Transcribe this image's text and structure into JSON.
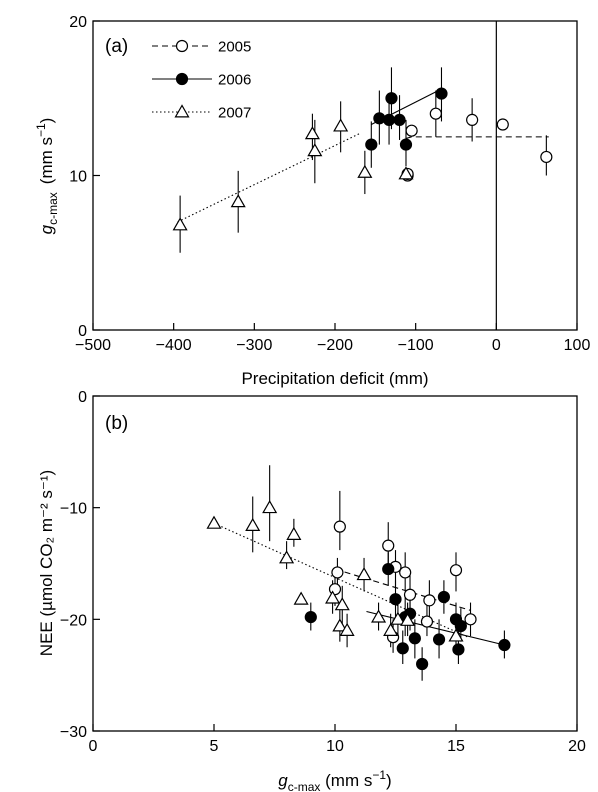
{
  "chart_data": [
    {
      "panel": "(a)",
      "type": "scatter",
      "xlabel": "Precipitation deficit (mm)",
      "ylabel_main": "g",
      "ylabel_sub": "c-max",
      "ylabel_unit": "(mm s",
      "ylabel_unit_sup": "−1",
      "ylabel_unit_close": ")",
      "xlim": [
        -500,
        100
      ],
      "ylim": [
        0,
        20
      ],
      "xticks": [
        -500,
        -400,
        -300,
        -200,
        -100,
        0,
        100
      ],
      "xtick_labels": [
        "−500",
        "−400",
        "−300",
        "−200",
        "−100",
        "0",
        "100"
      ],
      "yticks": [
        0,
        10,
        20
      ],
      "ytick_labels": [
        "0",
        "10",
        "20"
      ],
      "vline_x": 0,
      "legend_position": "top-left",
      "series": [
        {
          "name": "2005",
          "marker": "open-circle",
          "line": "dashed",
          "points": [
            [
              -110,
              10.0,
              10.0,
              10.0
            ],
            [
              -105,
              12.9,
              12.9,
              12.9
            ],
            [
              -75,
              14.0,
              12.5,
              15.5
            ],
            [
              -30,
              13.6,
              12.2,
              15.0
            ],
            [
              8,
              13.3,
              13.3,
              13.3
            ],
            [
              62,
              11.2,
              10.0,
              12.6
            ],
            [
              -110,
              10.1,
              10.1,
              10.1
            ]
          ],
          "fit": [
            [
              -112,
              12.4
            ],
            [
              -105,
              12.5
            ],
            [
              65,
              12.5
            ]
          ]
        },
        {
          "name": "2006",
          "marker": "filled-circle",
          "line": "solid",
          "points": [
            [
              -155,
              12.0,
              10.5,
              13.5
            ],
            [
              -145,
              13.7,
              12.0,
              15.5
            ],
            [
              -133,
              13.6,
              12.0,
              15.2
            ],
            [
              -130,
              15.0,
              13.0,
              17.0
            ],
            [
              -120,
              13.6,
              12.3,
              15.2
            ],
            [
              -112,
              12.0,
              10.6,
              13.6
            ],
            [
              -68,
              15.3,
              13.5,
              17.0
            ]
          ],
          "fit": [
            [
              -155,
              13.3
            ],
            [
              -68,
              15.6
            ]
          ]
        },
        {
          "name": "2007",
          "marker": "open-triangle",
          "line": "dotted",
          "points": [
            [
              -392,
              6.8,
              5.0,
              8.7
            ],
            [
              -320,
              8.3,
              6.3,
              10.3
            ],
            [
              -228,
              12.7,
              11.0,
              14.0
            ],
            [
              -225,
              11.6,
              9.5,
              13.6
            ],
            [
              -193,
              13.2,
              11.5,
              14.8
            ],
            [
              -163,
              10.2,
              8.8,
              11.6
            ],
            [
              -112,
              10.1,
              10.1,
              10.1
            ]
          ],
          "fit": [
            [
              -395,
              7.0
            ],
            [
              -170,
              12.7
            ]
          ]
        }
      ]
    },
    {
      "panel": "(b)",
      "type": "scatter",
      "xlabel_main": "g",
      "xlabel_sub": "c-max",
      "xlabel_unit": " (mm s",
      "xlabel_unit_sup": "−1",
      "xlabel_unit_close": ")",
      "ylabel": "NEE (µmol CO₂ m⁻² s⁻¹)",
      "xlim": [
        0,
        20
      ],
      "ylim": [
        -30,
        0
      ],
      "xticks": [
        0,
        5,
        10,
        15,
        20
      ],
      "xtick_labels": [
        "0",
        "5",
        "10",
        "15",
        "20"
      ],
      "yticks": [
        -30,
        -20,
        -10,
        0
      ],
      "ytick_labels": [
        "−30",
        "−20",
        "−10",
        "0"
      ],
      "series": [
        {
          "name": "2005",
          "marker": "open-circle",
          "line": "dashed",
          "points": [
            [
              10.0,
              -17.3,
              -18.8,
              -15.8
            ],
            [
              10.1,
              -15.8,
              -17.3,
              -14.5
            ],
            [
              10.2,
              -11.7,
              -13.8,
              -8.5
            ],
            [
              12.2,
              -13.4,
              -15.5,
              -11.3
            ],
            [
              12.5,
              -15.3,
              -17.0,
              -13.8
            ],
            [
              12.9,
              -15.8,
              -17.5,
              -14.0
            ],
            [
              13.1,
              -17.8,
              -19.5,
              -16.0
            ],
            [
              13.8,
              -20.2,
              -21.5,
              -18.5
            ],
            [
              13.9,
              -18.3,
              -20.0,
              -16.5
            ],
            [
              15.0,
              -15.6,
              -17.5,
              -14.0
            ],
            [
              15.6,
              -20.0,
              -21.5,
              -18.5
            ],
            [
              12.4,
              -21.6,
              -23.0,
              -20.0
            ]
          ],
          "fit": [
            [
              10.0,
              -15.5
            ],
            [
              15.6,
              -19.2
            ]
          ]
        },
        {
          "name": "2006",
          "marker": "filled-circle",
          "line": "solid",
          "points": [
            [
              9.0,
              -19.8,
              -21.0,
              -18.5
            ],
            [
              12.2,
              -15.5,
              -17.0,
              -14.0
            ],
            [
              12.5,
              -18.2,
              -20.0,
              -16.5
            ],
            [
              12.8,
              -22.6,
              -24.0,
              -21.0
            ],
            [
              12.9,
              -19.8,
              -21.5,
              -18.0
            ],
            [
              13.1,
              -19.5,
              -21.0,
              -18.0
            ],
            [
              13.3,
              -21.7,
              -23.5,
              -20.0
            ],
            [
              13.6,
              -24.0,
              -25.5,
              -22.5
            ],
            [
              14.3,
              -21.8,
              -23.5,
              -20.0
            ],
            [
              14.5,
              -18.0,
              -19.5,
              -16.5
            ],
            [
              15.0,
              -20.0,
              -21.5,
              -18.5
            ],
            [
              15.1,
              -22.7,
              -24.0,
              -21.0
            ],
            [
              15.2,
              -20.6,
              -22.0,
              -19.0
            ],
            [
              17.0,
              -22.3,
              -23.5,
              -21.0
            ]
          ],
          "fit": [
            [
              11.3,
              -19.3
            ],
            [
              17.0,
              -22.3
            ]
          ]
        },
        {
          "name": "2007",
          "marker": "open-triangle",
          "line": "dotted",
          "points": [
            [
              5.0,
              -11.4,
              -11.4,
              -11.4
            ],
            [
              6.6,
              -11.6,
              -14.0,
              -9.0
            ],
            [
              7.3,
              -10.0,
              -13.0,
              -6.2
            ],
            [
              8.0,
              -14.5,
              -15.5,
              -13.0
            ],
            [
              8.3,
              -12.4,
              -13.5,
              -11.0
            ],
            [
              8.6,
              -18.2,
              -18.2,
              -18.2
            ],
            [
              9.9,
              -18.1,
              -19.5,
              -16.5
            ],
            [
              10.2,
              -20.6,
              -22.0,
              -18.5
            ],
            [
              10.3,
              -18.7,
              -20.5,
              -17.0
            ],
            [
              10.5,
              -21.0,
              -22.5,
              -19.5
            ],
            [
              11.2,
              -16.0,
              -17.5,
              -14.5
            ],
            [
              11.8,
              -19.8,
              -21.0,
              -18.5
            ],
            [
              12.3,
              -21.0,
              -22.5,
              -19.5
            ],
            [
              12.6,
              -20.0,
              -21.5,
              -18.5
            ],
            [
              13.0,
              -20.1,
              -21.5,
              -18.5
            ],
            [
              15.0,
              -21.5,
              -23.0,
              -20.0
            ]
          ],
          "fit": [
            [
              5.0,
              -11.4
            ],
            [
              15.5,
              -21.6
            ]
          ]
        }
      ]
    }
  ]
}
